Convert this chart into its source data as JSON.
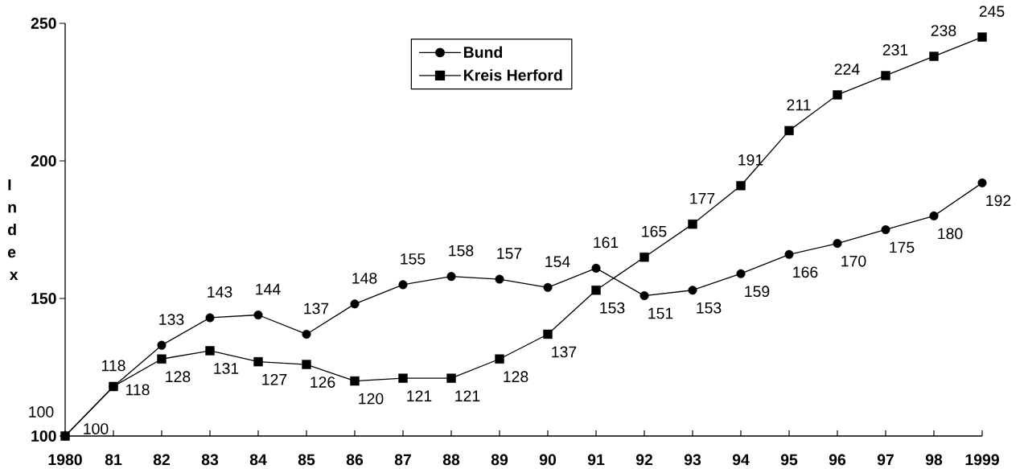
{
  "chart_data": {
    "type": "line",
    "ylabel": "Index",
    "categories": [
      "1980",
      "81",
      "82",
      "83",
      "84",
      "85",
      "86",
      "87",
      "88",
      "89",
      "90",
      "91",
      "92",
      "93",
      "94",
      "95",
      "96",
      "97",
      "98",
      "1999"
    ],
    "series": [
      {
        "name": "Bund",
        "color": "#000000",
        "marker": "circle",
        "values": [
          100,
          118,
          133,
          143,
          144,
          137,
          148,
          155,
          158,
          157,
          154,
          161,
          151,
          153,
          159,
          166,
          170,
          175,
          180,
          192
        ]
      },
      {
        "name": "Kreis Herford",
        "color": "#000000",
        "marker": "square",
        "values": [
          100,
          118,
          128,
          131,
          127,
          126,
          120,
          121,
          121,
          128,
          137,
          153,
          165,
          177,
          191,
          211,
          224,
          231,
          238,
          245
        ]
      }
    ],
    "ylim": [
      100,
      250
    ],
    "yticks": [
      100,
      150,
      200,
      250
    ],
    "data_labels": true,
    "legend": "top",
    "line_style": "solid"
  }
}
